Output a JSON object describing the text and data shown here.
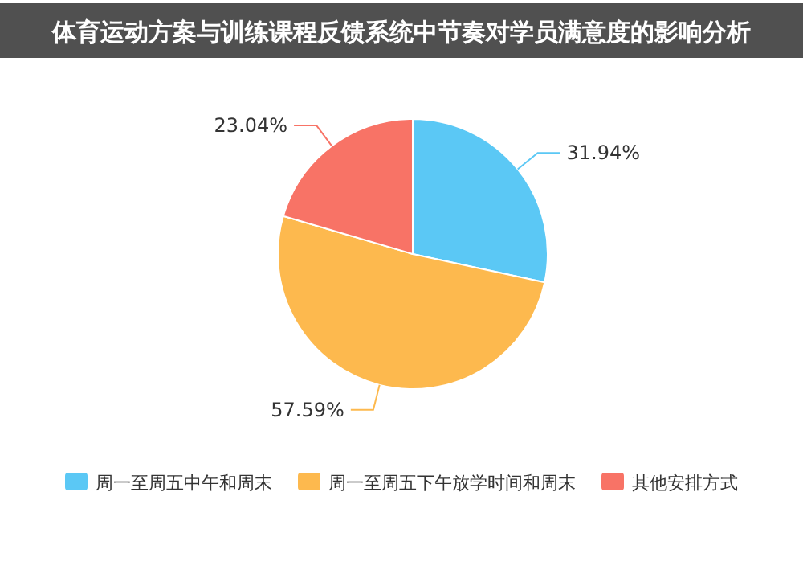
{
  "chart_data": {
    "type": "pie",
    "title": "体育运动方案与训练课程反馈系统中节奏对学员满意度的影响分析",
    "categories": [
      "周一至周五中午和周末",
      "周一至周五下午放学时间和周末",
      "其他安排方式"
    ],
    "values": [
      31.94,
      57.59,
      23.04
    ],
    "colors": [
      "#5bc8f5",
      "#fdb94e",
      "#f87366"
    ],
    "value_labels": [
      "31.94%",
      "57.59%",
      "23.04%"
    ],
    "legend": "bottom"
  }
}
